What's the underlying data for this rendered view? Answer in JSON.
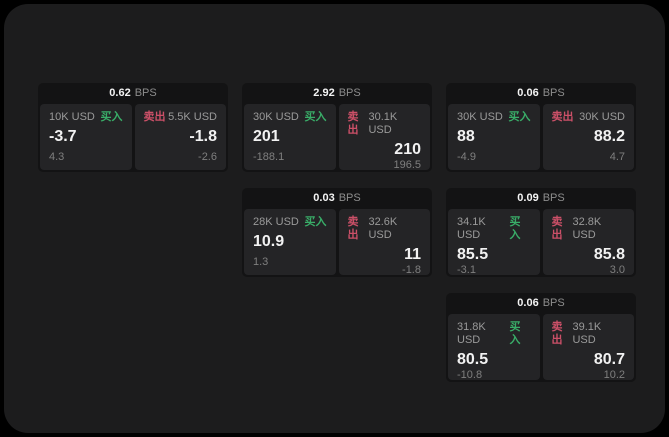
{
  "labels": {
    "bps_unit": "BPS",
    "buy": "买入",
    "sell": "卖出"
  },
  "colors": {
    "frame": "#000000",
    "page_bg": "#1c1c1d",
    "card_bg": "#131314",
    "panel_bg": "#242426",
    "buy_green": "#39ad68",
    "sell_red": "#cc5068"
  },
  "cards": [
    {
      "bps": "0.62",
      "buy": {
        "amount": "10K USD",
        "price": "-3.7",
        "sub": "4.3"
      },
      "sell": {
        "amount": "5.5K USD",
        "price": "-1.8",
        "sub": "-2.6"
      }
    },
    {
      "bps": "2.92",
      "buy": {
        "amount": "30K USD",
        "price": "201",
        "sub": "-188.1"
      },
      "sell": {
        "amount": "30.1K USD",
        "price": "210",
        "sub": "196.5"
      }
    },
    {
      "bps": "0.06",
      "buy": {
        "amount": "30K USD",
        "price": "88",
        "sub": "-4.9"
      },
      "sell": {
        "amount": "30K USD",
        "price": "88.2",
        "sub": "4.7"
      }
    },
    {
      "bps": "0.03",
      "buy": {
        "amount": "28K USD",
        "price": "10.9",
        "sub": "1.3"
      },
      "sell": {
        "amount": "32.6K USD",
        "price": "11",
        "sub": "-1.8"
      }
    },
    {
      "bps": "0.09",
      "buy": {
        "amount": "34.1K USD",
        "price": "85.5",
        "sub": "-3.1"
      },
      "sell": {
        "amount": "32.8K USD",
        "price": "85.8",
        "sub": "3.0"
      }
    },
    {
      "bps": "0.06",
      "buy": {
        "amount": "31.8K USD",
        "price": "80.5",
        "sub": "-10.8"
      },
      "sell": {
        "amount": "39.1K USD",
        "price": "80.7",
        "sub": "10.2"
      }
    }
  ]
}
